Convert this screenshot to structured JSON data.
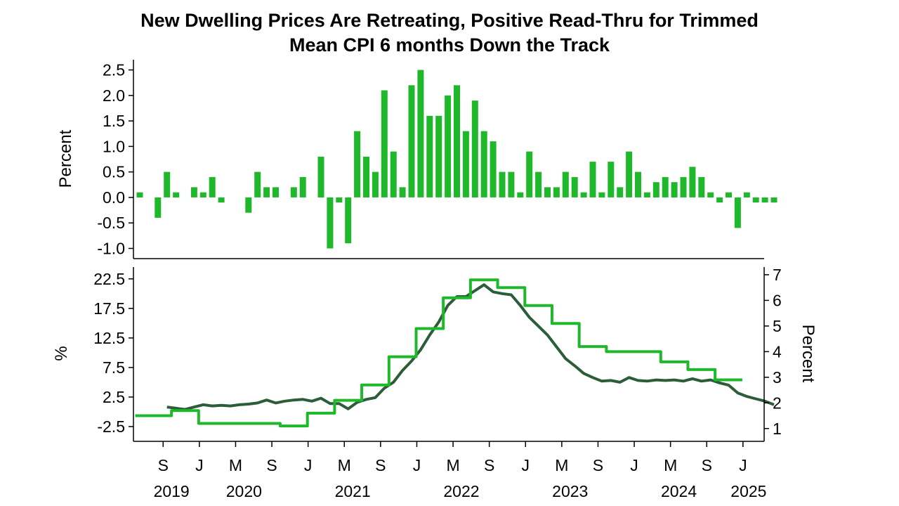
{
  "chart_data": [
    {
      "type": "bar",
      "title": "New Dwelling Prices Are Retreating, Positive Read-Thru for Trimmed",
      "subtitle": "Mean CPI 6 months Down the Track",
      "ylabel": "Percent",
      "ylim": [
        -1.2,
        2.7
      ],
      "yticks": [
        2.5,
        2.0,
        1.5,
        1.0,
        0.5,
        0.0,
        -0.5,
        -1.0
      ],
      "ytick_labels": [
        "2.5",
        "2.0",
        "1.5",
        "1.0",
        "0.5",
        "0.0",
        "-0.5",
        "-1.0"
      ],
      "x_start": "2019-06",
      "values": [
        0.1,
        0.0,
        -0.4,
        0.5,
        0.1,
        0.0,
        0.2,
        0.1,
        0.4,
        -0.1,
        0.0,
        0.0,
        -0.3,
        0.5,
        0.2,
        0.2,
        0.0,
        0.2,
        0.4,
        0.0,
        0.8,
        -1.0,
        -0.1,
        -0.9,
        1.3,
        0.8,
        0.5,
        2.1,
        0.9,
        0.2,
        2.2,
        2.5,
        1.6,
        1.6,
        2.0,
        2.2,
        1.3,
        1.9,
        1.3,
        1.1,
        0.5,
        0.5,
        0.1,
        0.9,
        0.5,
        0.2,
        0.2,
        0.5,
        0.4,
        0.1,
        0.7,
        0.1,
        0.7,
        0.2,
        0.9,
        0.5,
        0.1,
        0.3,
        0.4,
        0.3,
        0.4,
        0.6,
        0.4,
        0.1,
        -0.1,
        0.1,
        -0.6,
        0.1,
        -0.1,
        -0.1,
        -0.1
      ],
      "color": "#1fb82a",
      "grid": false
    },
    {
      "type": "line",
      "ylabel": "%",
      "ylabel_right": "Percent",
      "ylim": [
        -5,
        24.5
      ],
      "yticks": [
        22.5,
        17.5,
        12.5,
        7.5,
        2.5,
        -2.5
      ],
      "ytick_labels": [
        "22.5",
        "17.5",
        "12.5",
        "7.5",
        "2.5",
        "-2.5"
      ],
      "ylim_right": [
        0.5,
        7.3
      ],
      "yticks_right": [
        7,
        6,
        5,
        4,
        3,
        2,
        1
      ],
      "ytick_labels_right": [
        "7",
        "6",
        "5",
        "4",
        "3",
        "2",
        "1"
      ],
      "x_start": "2019-06",
      "x_tick_labels": [
        "S",
        "J",
        "M",
        "S",
        "J",
        "M",
        "S",
        "J",
        "M",
        "S",
        "J",
        "M",
        "S",
        "J",
        "M",
        "S",
        "J"
      ],
      "x_tick_months": [
        3,
        7,
        11,
        15,
        19,
        23,
        27,
        31,
        35,
        39,
        43,
        47,
        51,
        55,
        59,
        63,
        67
      ],
      "year_labels": [
        "2019",
        "2020",
        "2021",
        "2022",
        "2023",
        "2024",
        "2025"
      ],
      "year_label_months": [
        3.5,
        11.5,
        23.5,
        35.5,
        47.5,
        59.5,
        67.2
      ],
      "grid": false,
      "series": [
        {
          "axis": "left",
          "color": "#2b5e38",
          "values": [
            null,
            null,
            null,
            0.8,
            0.6,
            0.4,
            0.8,
            1.2,
            1.0,
            1.1,
            1.0,
            1.2,
            1.3,
            1.5,
            2.0,
            1.5,
            1.8,
            2.0,
            2.1,
            1.8,
            2.3,
            1.4,
            1.4,
            0.5,
            1.6,
            2.1,
            2.4,
            4.0,
            5.0,
            7.0,
            8.6,
            10.5,
            13.0,
            15.2,
            18.0,
            19.5,
            19.5,
            20.5,
            21.5,
            20.3,
            20.0,
            19.8,
            18.0,
            16.0,
            14.5,
            13.0,
            11.0,
            9.0,
            7.8,
            6.5,
            5.8,
            5.2,
            5.3,
            5.0,
            5.8,
            5.3,
            5.2,
            5.4,
            5.3,
            5.4,
            5.2,
            5.6,
            5.2,
            5.4,
            4.9,
            4.5,
            3.2,
            2.6,
            2.2,
            1.8,
            1.2
          ]
        },
        {
          "axis": "right",
          "color": "#1fb82a",
          "values": [
            1.5,
            1.5,
            1.5,
            1.5,
            1.7,
            1.7,
            1.7,
            1.2,
            1.2,
            1.2,
            1.2,
            1.2,
            1.2,
            1.2,
            1.2,
            1.2,
            1.1,
            1.1,
            1.1,
            1.6,
            1.6,
            1.6,
            2.1,
            2.1,
            2.1,
            2.7,
            2.7,
            2.7,
            3.8,
            3.8,
            3.8,
            4.9,
            4.9,
            4.9,
            6.1,
            6.1,
            6.1,
            6.8,
            6.8,
            6.8,
            6.5,
            6.5,
            6.5,
            5.8,
            5.8,
            5.8,
            5.1,
            5.1,
            5.1,
            4.2,
            4.2,
            4.2,
            4.0,
            4.0,
            4.0,
            4.0,
            4.0,
            4.0,
            3.6,
            3.6,
            3.6,
            3.3,
            3.3,
            3.3,
            2.9,
            2.9,
            2.9
          ]
        }
      ]
    }
  ]
}
